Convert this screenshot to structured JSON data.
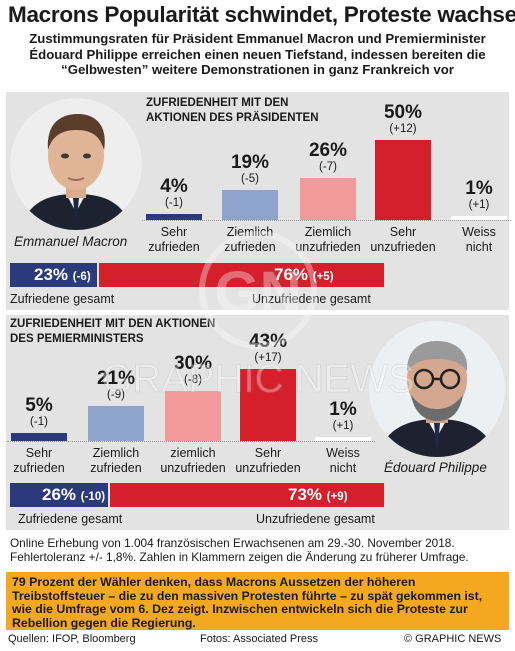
{
  "title": "Macrons Popularität schwindet, Proteste wachsen",
  "subtitle_line1": "Zustimmungsraten für Präsident Emmanuel Macron und Premierminister",
  "subtitle_line2": "Édouard Philippe erreichen einen neuen Tiefstand, indessen bereiten die",
  "subtitle_line3": "“Gelbwesten” weitere Demonstrationen in ganz Frankreich vor",
  "colors": {
    "dark_blue": "#2a3a7c",
    "light_blue": "#8ea4cc",
    "light_red": "#f2999c",
    "red": "#d51f2b",
    "white_bar": "#ffffff",
    "panel_bg": "#e3e3e3",
    "quote_bg": "#f3a81f"
  },
  "chart_data": [
    {
      "type": "bar",
      "title": "ZUFRIEDENHEIT MIT DEN AKTIONEN DES PRÄSIDENTEN",
      "title_line1": "ZUFRIEDENHEIT MIT DEN",
      "title_line2": "AKTIONEN DES PRÄSIDENTEN",
      "person": "Emmanuel Macron",
      "categories": [
        "Sehr zufrieden",
        "Ziemlich zufrieden",
        "Ziemlich unzufrieden",
        "Sehr unzufrieden",
        "Weiss nicht"
      ],
      "category_lines": [
        [
          "Sehr",
          "zufrieden"
        ],
        [
          "Ziemlich",
          "zufrieden"
        ],
        [
          "Ziemlich",
          "unzufrieden"
        ],
        [
          "Sehr",
          "unzufrieden"
        ],
        [
          "Weiss",
          "nicht"
        ]
      ],
      "values": [
        4,
        19,
        26,
        50,
        1
      ],
      "value_labels": [
        "4%",
        "19%",
        "26%",
        "50%",
        "1%"
      ],
      "changes": [
        "(-1)",
        "(-5)",
        "(-7)",
        "(+12)",
        "(+1)"
      ],
      "colors": [
        "#2a3a7c",
        "#8ea4cc",
        "#f2999c",
        "#d51f2b",
        "#ffffff"
      ],
      "summary": {
        "satisfied_value": 23,
        "satisfied_label": "23%",
        "satisfied_change": "(-6)",
        "satisfied_text": "Zufriedene gesamt",
        "dissatisfied_value": 76,
        "dissatisfied_label": "76%",
        "dissatisfied_change": "(+5)",
        "dissatisfied_text": "Unzufriedene gesamt"
      }
    },
    {
      "type": "bar",
      "title": "ZUFRIEDENHEIT MIT DEN AKTIONEN DES PEMIERMINISTERS",
      "title_line1": "ZUFRIEDENHEIT MIT DEN AKTIONEN",
      "title_line2": "DES PEMIERMINISTERS",
      "person": "Édouard Philippe",
      "categories": [
        "Sehr zufrieden",
        "Ziemlich zufrieden",
        "ziemlich unzufrieden",
        "Sehr unzufrieden",
        "Weiss nicht"
      ],
      "category_lines": [
        [
          "Sehr",
          "zufrieden"
        ],
        [
          "Ziemlich",
          "zufrieden"
        ],
        [
          "ziemlich",
          "unzufrieden"
        ],
        [
          "Sehr",
          "unzufrieden"
        ],
        [
          "Weiss",
          "nicht"
        ]
      ],
      "values": [
        5,
        21,
        30,
        43,
        1
      ],
      "value_labels": [
        "5%",
        "21%",
        "30%",
        "43%",
        "1%"
      ],
      "changes": [
        "(-1)",
        "(-9)",
        "(-8)",
        "(+17)",
        "(+1)"
      ],
      "colors": [
        "#2a3a7c",
        "#8ea4cc",
        "#f2999c",
        "#d51f2b",
        "#ffffff"
      ],
      "summary": {
        "satisfied_value": 26,
        "satisfied_label": "26%",
        "satisfied_change": "(-10)",
        "satisfied_text": "Zufriedene gesamt",
        "dissatisfied_value": 73,
        "dissatisfied_label": "73%",
        "dissatisfied_change": "(+9)",
        "dissatisfied_text": "Unzufriedene gesamt"
      }
    }
  ],
  "note_line1": "Online Erhebung von 1.004 französischen Erwachsenen am 29.-30. November 2018.",
  "note_line2": "Fehlertoleranz +/- 1,8%. Zahlen in Klammern zeigen die Änderung zu früherer Umfrage.",
  "quote": "79 Prozent der Wähler denken, dass Macrons Aussetzen der höheren Treibstoffsteuer – die zu den massiven Protesten führte – zu spät gekommen ist, wie die Umfrage vom 6. Dez zeigt. Inzwischen entwickeln sich die Proteste zur Rebellion gegen die Regierung.",
  "footer": {
    "sources": "Quellen: IFOP, Bloomberg",
    "photos": "Fotos: Associated Press",
    "credit": "© GRAPHIC NEWS"
  },
  "watermark": {
    "logo": "GN",
    "text": "GRAPHIC NEWS"
  }
}
